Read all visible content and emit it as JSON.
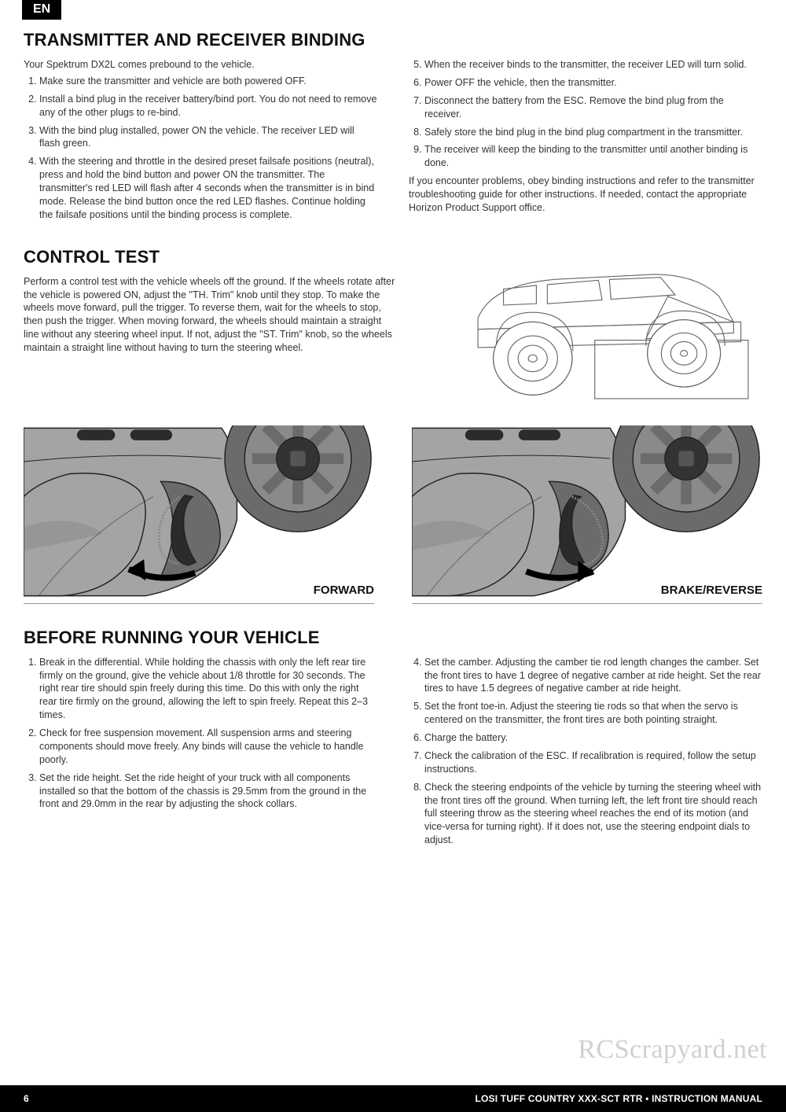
{
  "lang_tab": "EN",
  "section1": {
    "title": "TRANSMITTER AND RECEIVER BINDING",
    "intro": "Your Spektrum DX2L comes prebound to the vehicle.",
    "left_steps": [
      "Make sure the transmitter and vehicle are both powered OFF.",
      "Install a bind plug in the receiver battery/bind port. You do not need to remove any of the other plugs to re-bind.",
      "With the bind plug installed, power ON the vehicle. The receiver LED will flash green.",
      "With the steering and throttle in the desired preset failsafe positions (neutral), press and hold the bind button and power ON the transmitter. The transmitter's red LED will flash after 4 seconds when the transmitter is in bind mode. Release the bind button once the red LED flashes. Continue holding the failsafe positions until the binding process is complete."
    ],
    "right_steps": [
      "When the receiver binds to the transmitter, the receiver LED will turn solid.",
      "Power OFF the vehicle, then the transmitter.",
      "Disconnect the battery from the ESC. Remove the bind plug from the receiver.",
      "Safely store the bind plug in the bind plug compartment in the transmitter.",
      "The receiver will keep the binding to the transmitter until another binding is done."
    ],
    "right_para": "If you encounter problems, obey binding instructions and refer to the transmitter troubleshooting guide for other instructions.  If needed, contact the appropriate Horizon Product Support office."
  },
  "section2": {
    "title": "CONTROL TEST",
    "text": "Perform a control test with the vehicle wheels off the ground. If the wheels rotate after the vehicle is powered ON, adjust the \"TH. Trim\" knob until they stop. To make the wheels move forward, pull the trigger. To reverse them, wait for the wheels to stop, then push the trigger. When moving forward, the wheels should maintain a straight line without any steering wheel input. If not, adjust the \"ST. Trim\" knob, so the wheels maintain a straight line without having to turn the steering wheel."
  },
  "transmitters": {
    "forward_label": "FORWARD",
    "reverse_label": "BRAKE/REVERSE"
  },
  "section3": {
    "title": "BEFORE RUNNING YOUR VEHICLE",
    "left_steps": [
      "Break in the differential. While holding the chassis with only the left rear tire firmly on the ground, give the vehicle about 1/8 throttle for 30 seconds. The right rear tire should spin freely during this time. Do this with only the right rear tire firmly on the ground, allowing the left to spin freely. Repeat this 2–3 times.",
      "Check for free suspension movement. All suspension arms and steering components should move freely. Any binds will cause the vehicle to handle poorly.",
      "Set the ride height. Set the ride height of your truck with all components installed so that the bottom of the chassis is 29.5mm from the ground in the front and 29.0mm in the rear by adjusting the shock collars."
    ],
    "right_steps": [
      "Set the camber. Adjusting the camber tie rod length changes the camber. Set the front tires to have 1 degree of negative camber at ride height. Set the rear tires to have 1.5 degrees of negative camber at ride height.",
      "Set the front toe-in. Adjust the steering tie rods so that when the servo is centered on the transmitter, the front tires are both pointing straight.",
      "Charge the battery.",
      "Check the calibration of the ESC. If recalibration is required, follow the setup instructions.",
      "Check the steering endpoints of the vehicle by turning the steering wheel with the front tires off the ground. When turning left, the left front tire should reach full steering throw as the steering wheel reaches the end of its motion (and vice-versa for turning right). If it does not, use the steering endpoint dials to adjust."
    ]
  },
  "watermark": "RCScrapyard.net",
  "footer": {
    "page_number": "6",
    "title": "LOSI TUFF COUNTRY XXX-SCT RTR • INSTRUCTION MANUAL"
  },
  "colors": {
    "body_gray": "#a4a4a4",
    "body_dark": "#6b6b6b",
    "outline": "#222222",
    "wheel_fill": "#8a8a8a",
    "arrow": "#000000",
    "truck_stroke": "#666666",
    "box_fill": "#ffffff"
  }
}
